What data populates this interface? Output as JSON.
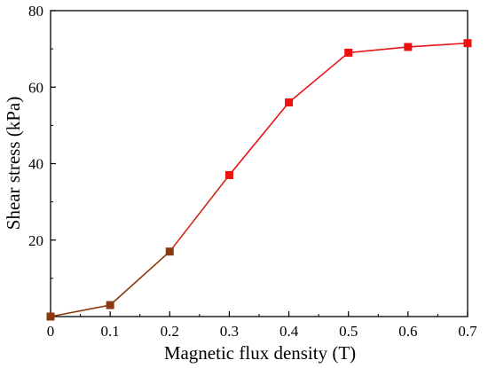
{
  "chart_data": {
    "type": "line",
    "title": "",
    "xlabel": "Magnetic flux density (T)",
    "ylabel": "Shear stress (kPa)",
    "xlim": [
      0,
      0.7
    ],
    "ylim": [
      0,
      80
    ],
    "x_ticks": [
      0,
      0.1,
      0.2,
      0.3,
      0.4,
      0.5,
      0.6,
      0.7
    ],
    "x_tick_labels": [
      "0",
      "0.1",
      "0.2",
      "0.3",
      "0.4",
      "0.5",
      "0.6",
      "0.7"
    ],
    "y_ticks": [
      20,
      40,
      60,
      80
    ],
    "y_tick_labels": [
      "20",
      "40",
      "60",
      "80"
    ],
    "grid": false,
    "legend": "none",
    "series": [
      {
        "x": [
          0,
          0.1,
          0.2,
          0.3,
          0.4,
          0.5,
          0.6,
          0.7
        ],
        "y": [
          0,
          3,
          17,
          37,
          56,
          69,
          70.5,
          71.5
        ],
        "line_colors": [
          "#8B3A0F",
          "#8B3A0F",
          "#CC2A1A",
          "#E8141A",
          "#E8141A",
          "#E8141A",
          "#E8141A"
        ],
        "marker_colors": [
          "#8B3A0F",
          "#8B3A0F",
          "#8B3A0F",
          "#EE1111",
          "#EE1111",
          "#EE1111",
          "#EE1111",
          "#EE1111"
        ],
        "marker": "square"
      }
    ]
  }
}
